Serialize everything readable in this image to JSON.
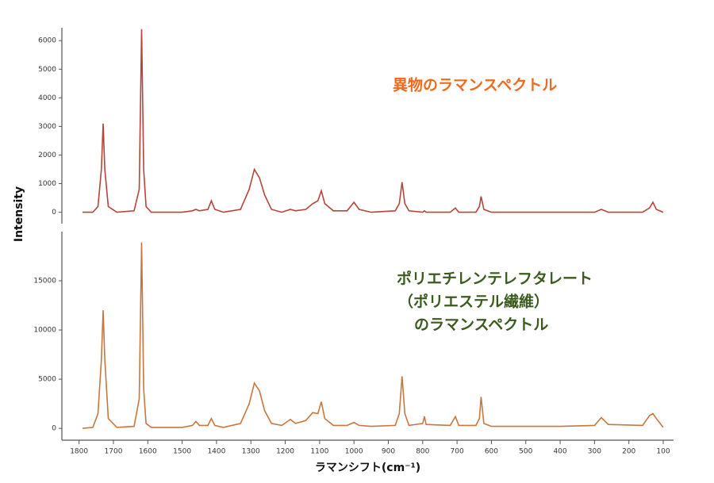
{
  "ylabel": "Intensity",
  "chart_data": [
    {
      "type": "line",
      "annotation": [
        "異物のラマンスペクトル"
      ],
      "annotation_color": "#f06a1e",
      "xlim": [
        1850,
        70
      ],
      "ylim": [
        -400,
        6450
      ],
      "yticks": [
        0,
        1000,
        2000,
        3000,
        4000,
        5000,
        6000
      ],
      "x": [
        1790,
        1760,
        1745,
        1735,
        1730,
        1725,
        1715,
        1690,
        1640,
        1625,
        1618,
        1612,
        1605,
        1590,
        1500,
        1470,
        1460,
        1450,
        1425,
        1415,
        1405,
        1380,
        1330,
        1305,
        1290,
        1275,
        1260,
        1240,
        1210,
        1185,
        1170,
        1140,
        1120,
        1105,
        1095,
        1085,
        1060,
        1020,
        1000,
        985,
        950,
        880,
        868,
        860,
        852,
        840,
        800,
        795,
        790,
        720,
        705,
        695,
        645,
        635,
        630,
        622,
        600,
        400,
        300,
        280,
        260,
        160,
        140,
        130,
        120,
        100
      ],
      "series": [
        {
          "color": "#b5453a",
          "values": [
            0,
            0,
            200,
            1500,
            3100,
            1500,
            200,
            0,
            50,
            800,
            6400,
            1500,
            200,
            0,
            0,
            50,
            100,
            50,
            100,
            400,
            100,
            0,
            100,
            800,
            1500,
            1200,
            600,
            100,
            0,
            100,
            50,
            100,
            300,
            400,
            750,
            300,
            50,
            50,
            350,
            100,
            0,
            50,
            300,
            1050,
            300,
            50,
            0,
            50,
            0,
            0,
            150,
            0,
            0,
            200,
            550,
            100,
            0,
            0,
            0,
            100,
            0,
            0,
            150,
            350,
            100,
            0
          ]
        }
      ]
    },
    {
      "type": "line",
      "annotation": [
        "ポリエチレンテレフタレート",
        "（ポリエステル繊維）",
        "のラマンスペクトル"
      ],
      "annotation_color": "#3a5a1e",
      "xlim": [
        1850,
        70
      ],
      "ylim": [
        -1200,
        20000
      ],
      "yticks": [
        0,
        5000,
        10000,
        15000
      ],
      "xticks": [
        1800,
        1700,
        1600,
        1500,
        1400,
        1300,
        1200,
        1100,
        1000,
        900,
        800,
        700,
        600,
        500,
        400,
        300,
        200,
        100
      ],
      "xlabel": "ラマンシフト(cm⁻¹)",
      "x": [
        1790,
        1760,
        1745,
        1735,
        1730,
        1725,
        1715,
        1690,
        1640,
        1625,
        1618,
        1612,
        1605,
        1590,
        1500,
        1470,
        1460,
        1450,
        1425,
        1415,
        1405,
        1380,
        1330,
        1305,
        1290,
        1275,
        1260,
        1240,
        1210,
        1185,
        1170,
        1140,
        1120,
        1105,
        1095,
        1085,
        1060,
        1020,
        1000,
        985,
        950,
        880,
        868,
        860,
        852,
        840,
        800,
        795,
        790,
        720,
        705,
        695,
        645,
        635,
        630,
        622,
        600,
        400,
        300,
        280,
        260,
        160,
        140,
        130,
        120,
        100
      ],
      "series": [
        {
          "color": "#c8763f",
          "values": [
            0,
            100,
            1500,
            7000,
            12000,
            7000,
            1000,
            100,
            200,
            3000,
            18900,
            4000,
            500,
            100,
            100,
            300,
            700,
            300,
            300,
            1000,
            300,
            100,
            500,
            2500,
            4600,
            3800,
            1800,
            500,
            300,
            900,
            500,
            800,
            1600,
            1500,
            2700,
            1000,
            300,
            300,
            600,
            300,
            200,
            300,
            1500,
            5300,
            1500,
            300,
            500,
            1200,
            400,
            300,
            1200,
            300,
            300,
            1000,
            3200,
            500,
            200,
            200,
            300,
            1100,
            400,
            300,
            1300,
            1500,
            1000,
            100
          ]
        }
      ]
    }
  ]
}
